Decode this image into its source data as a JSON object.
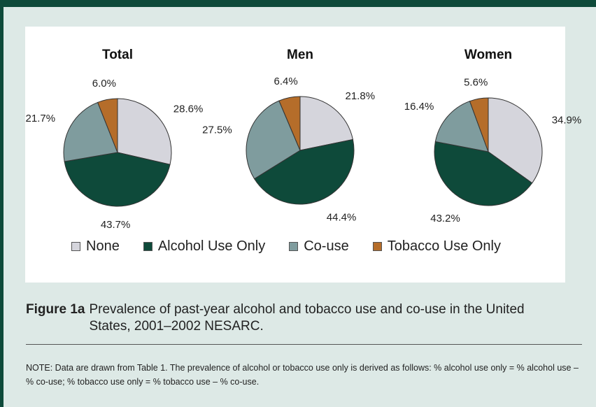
{
  "chart_data": [
    {
      "type": "pie",
      "title": "Total",
      "categories": [
        "None",
        "Alcohol Use Only",
        "Co-use",
        "Tobacco Use Only"
      ],
      "values": [
        28.6,
        43.7,
        21.7,
        6.0
      ],
      "labels": [
        "28.6%",
        "43.7%",
        "21.7%",
        "6.0%"
      ]
    },
    {
      "type": "pie",
      "title": "Men",
      "categories": [
        "None",
        "Alcohol Use Only",
        "Co-use",
        "Tobacco Use Only"
      ],
      "values": [
        21.8,
        44.4,
        27.5,
        6.4
      ],
      "labels": [
        "21.8%",
        "44.4%",
        "27.5%",
        "6.4%"
      ]
    },
    {
      "type": "pie",
      "title": "Women",
      "categories": [
        "None",
        "Alcohol Use Only",
        "Co-use",
        "Tobacco Use Only"
      ],
      "values": [
        34.9,
        43.2,
        16.4,
        5.6
      ],
      "labels": [
        "34.9%",
        "43.2%",
        "16.4%",
        "5.6%"
      ]
    }
  ],
  "legend": {
    "items": [
      {
        "label": "None",
        "color": "#d5d5dc"
      },
      {
        "label": "Alcohol Use Only",
        "color": "#0e4a3a"
      },
      {
        "label": "Co-use",
        "color": "#7f9c9e"
      },
      {
        "label": "Tobacco Use Only",
        "color": "#b56d2a"
      }
    ]
  },
  "caption": {
    "label": "Figure 1a",
    "text": "Prevalence of past-year alcohol and tobacco use and co-use in the United States, 2001–2002 NESARC."
  },
  "note": "NOTE: Data are drawn from Table 1. The prevalence of alcohol or tobacco use only is derived as follows: % alcohol use only = % alcohol use – % co-use; % tobacco use only = % tobacco use – % co-use."
}
